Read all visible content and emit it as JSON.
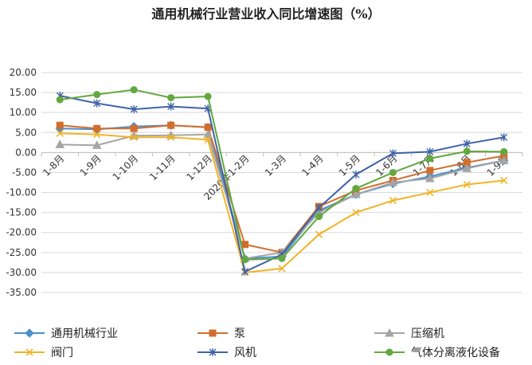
{
  "chart_data": {
    "type": "line",
    "title": "通用机械行业营业收入同比增速图（%）",
    "xlabel": "",
    "ylabel": "",
    "categories": [
      "1-8月",
      "1-9月",
      "1-10月",
      "1-11月",
      "1-12月",
      "2020年1-2月",
      "1-3月",
      "1-4月",
      "1-5月",
      "1-6月",
      "1-7月",
      "1-8月",
      "1-9月"
    ],
    "ylim": [
      -35,
      20
    ],
    "yticks": [
      "20.00",
      "15.00",
      "10.00",
      "5.00",
      "0.00",
      "-5.00",
      "-10.00",
      "-15.00",
      "-20.00",
      "-25.00",
      "-30.00",
      "-35.00"
    ],
    "grid": true,
    "legend_position": "bottom",
    "series": [
      {
        "name": "通用机械行业",
        "color": "#4A90C8",
        "marker": "diamond",
        "values": [
          6.0,
          5.8,
          6.5,
          6.8,
          6.3,
          -26.5,
          -26.0,
          -14.5,
          -10.5,
          -7.8,
          -6.0,
          -3.8,
          -2.0
        ]
      },
      {
        "name": "泵",
        "color": "#D26E2D",
        "marker": "square",
        "values": [
          6.8,
          6.0,
          6.0,
          6.8,
          6.3,
          -23.0,
          -25.0,
          -13.5,
          -9.5,
          -7.0,
          -4.5,
          -2.5,
          -0.8
        ]
      },
      {
        "name": "压缩机",
        "color": "#A5A5A5",
        "marker": "triangle",
        "values": [
          2.0,
          1.8,
          4.2,
          4.3,
          4.5,
          -26.5,
          -25.0,
          -15.0,
          -10.5,
          -7.5,
          -6.5,
          -4.0,
          -2.0
        ]
      },
      {
        "name": "阀门",
        "color": "#F0B428",
        "marker": "x",
        "values": [
          4.8,
          4.5,
          3.8,
          3.8,
          3.2,
          -30.0,
          -29.0,
          -20.5,
          -15.0,
          -12.0,
          -10.0,
          -8.0,
          -7.0
        ]
      },
      {
        "name": "风机",
        "color": "#3F62A6",
        "marker": "star",
        "values": [
          14.2,
          12.3,
          10.8,
          11.5,
          11.0,
          -29.8,
          -25.5,
          -13.8,
          -5.5,
          -0.2,
          0.2,
          2.2,
          3.8
        ]
      },
      {
        "name": "气体分离液化设备",
        "color": "#62A83E",
        "marker": "circle",
        "values": [
          13.2,
          14.5,
          15.7,
          13.7,
          14.0,
          -26.8,
          -26.5,
          -16.0,
          -9.0,
          -5.0,
          -1.5,
          0.3,
          0.2
        ]
      }
    ]
  }
}
